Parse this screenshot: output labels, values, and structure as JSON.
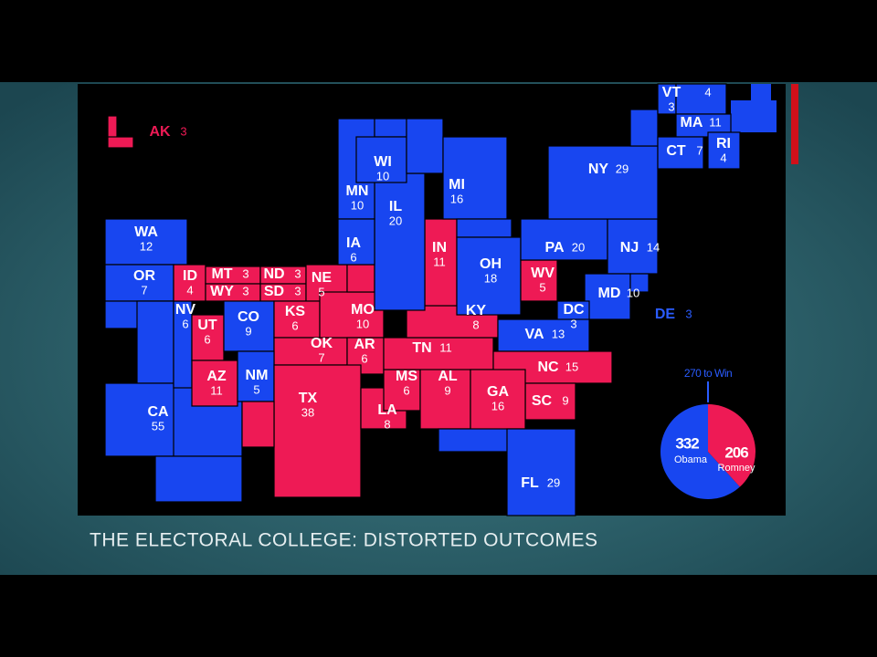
{
  "map": {
    "states": [
      {
        "abbr": "WA",
        "votes": 12,
        "color": "#1846f0"
      },
      {
        "abbr": "OR",
        "votes": 7,
        "color": "#1846f0"
      },
      {
        "abbr": "CA",
        "votes": 55,
        "color": "#1846f0"
      },
      {
        "abbr": "NV",
        "votes": 6,
        "color": "#1846f0"
      },
      {
        "abbr": "ID",
        "votes": 4,
        "color": "#ee1a55"
      },
      {
        "abbr": "MT",
        "votes": 3,
        "color": "#ee1a55"
      },
      {
        "abbr": "WY",
        "votes": 3,
        "color": "#ee1a55"
      },
      {
        "abbr": "ND",
        "votes": 3,
        "color": "#ee1a55"
      },
      {
        "abbr": "SD",
        "votes": 3,
        "color": "#ee1a55"
      },
      {
        "abbr": "NE",
        "votes": 5,
        "color": "#ee1a55"
      },
      {
        "abbr": "UT",
        "votes": 6,
        "color": "#ee1a55"
      },
      {
        "abbr": "CO",
        "votes": 9,
        "color": "#1846f0"
      },
      {
        "abbr": "KS",
        "votes": 6,
        "color": "#ee1a55"
      },
      {
        "abbr": "OK",
        "votes": 7,
        "color": "#ee1a55"
      },
      {
        "abbr": "MO",
        "votes": 10,
        "color": "#ee1a55"
      },
      {
        "abbr": "AR",
        "votes": 6,
        "color": "#ee1a55"
      },
      {
        "abbr": "AZ",
        "votes": 11,
        "color": "#ee1a55"
      },
      {
        "abbr": "NM",
        "votes": 5,
        "color": "#1846f0"
      },
      {
        "abbr": "TX",
        "votes": 38,
        "color": "#ee1a55"
      },
      {
        "abbr": "LA",
        "votes": 8,
        "color": "#ee1a55"
      },
      {
        "abbr": "MS",
        "votes": 6,
        "color": "#ee1a55"
      },
      {
        "abbr": "AL",
        "votes": 9,
        "color": "#ee1a55"
      },
      {
        "abbr": "TN",
        "votes": 11,
        "color": "#ee1a55"
      },
      {
        "abbr": "KY",
        "votes": 8,
        "color": "#ee1a55"
      },
      {
        "abbr": "IN",
        "votes": 11,
        "color": "#ee1a55"
      },
      {
        "abbr": "IL",
        "votes": 20,
        "color": "#1846f0"
      },
      {
        "abbr": "MN",
        "votes": 10,
        "color": "#1846f0"
      },
      {
        "abbr": "WI",
        "votes": 10,
        "color": "#1846f0"
      },
      {
        "abbr": "IA",
        "votes": 6,
        "color": "#1846f0"
      },
      {
        "abbr": "MI",
        "votes": 16,
        "color": "#1846f0"
      },
      {
        "abbr": "OH",
        "votes": 18,
        "color": "#1846f0"
      },
      {
        "abbr": "WV",
        "votes": 5,
        "color": "#ee1a55"
      },
      {
        "abbr": "PA",
        "votes": 20,
        "color": "#1846f0"
      },
      {
        "abbr": "NJ",
        "votes": 14,
        "color": "#1846f0"
      },
      {
        "abbr": "NY",
        "votes": 29,
        "color": "#1846f0"
      },
      {
        "abbr": "VT",
        "votes": 3,
        "color": "#1846f0"
      },
      {
        "abbr": null,
        "votes": 4,
        "color": "#1846f0"
      },
      {
        "abbr": "MA",
        "votes": 11,
        "color": "#1846f0"
      },
      {
        "abbr": "CT",
        "votes": 7,
        "color": "#1846f0"
      },
      {
        "abbr": "RI",
        "votes": 4,
        "color": "#1846f0"
      },
      {
        "abbr": "MD",
        "votes": 10,
        "color": "#1846f0"
      },
      {
        "abbr": "DC",
        "votes": 3,
        "color": "#1846f0"
      },
      {
        "abbr": "DE",
        "votes": 3,
        "color": "#1846f0"
      },
      {
        "abbr": "VA",
        "votes": 13,
        "color": "#1846f0"
      },
      {
        "abbr": "NC",
        "votes": 15,
        "color": "#ee1a55"
      },
      {
        "abbr": "SC",
        "votes": 9,
        "color": "#ee1a55"
      },
      {
        "abbr": "GA",
        "votes": 16,
        "color": "#ee1a55"
      },
      {
        "abbr": "FL",
        "votes": 29,
        "color": "#1846f0"
      },
      {
        "abbr": "AK",
        "votes": 3,
        "color": "#ee1a55"
      }
    ]
  },
  "pie": {
    "label": "270 to Win",
    "slices": [
      {
        "value": 332,
        "name": "Obama",
        "color": "#1846f0"
      },
      {
        "value": 206,
        "name": "Romney",
        "color": "#ee1a55"
      }
    ]
  },
  "caption": "THE ELECTORAL COLLEGE: DISTORTED OUTCOMES"
}
